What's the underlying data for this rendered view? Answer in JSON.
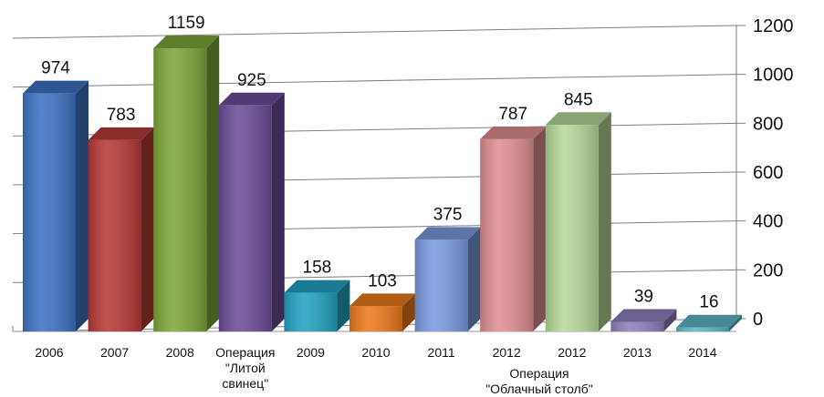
{
  "chart_data": {
    "type": "bar",
    "categories": [
      "2006",
      "2007",
      "2008",
      "Операция \"Литой свинец\"",
      "2009",
      "2010",
      "2011",
      "2012",
      "2012",
      "2013",
      "2014"
    ],
    "category_lines": [
      [
        "2006"
      ],
      [
        "2007"
      ],
      [
        "2008"
      ],
      [
        "Операция",
        "\"Литой",
        "свинец\""
      ],
      [
        "2009"
      ],
      [
        "2010"
      ],
      [
        "2011"
      ],
      [
        "2012"
      ],
      [
        "2012"
      ],
      [
        "2013"
      ],
      [
        "2014"
      ]
    ],
    "values": [
      974,
      783,
      1159,
      925,
      158,
      103,
      375,
      787,
      845,
      39,
      16
    ],
    "value_labels": [
      "974",
      "783",
      "1159",
      "925",
      "158",
      "103",
      "375",
      "787",
      "845",
      "39",
      "16"
    ],
    "colors": [
      "#3f73c4",
      "#b83a36",
      "#7fa83a",
      "#6b4d99",
      "#23a3c2",
      "#ec7b1c",
      "#7b9be0",
      "#e08f92",
      "#b7d99a",
      "#9080bd",
      "#5db5c8"
    ],
    "group_annotation": {
      "lines": [
        "Операция",
        "\"Облачный столб\""
      ]
    },
    "ylim": [
      0,
      1200
    ],
    "yticks": [
      "0",
      "200",
      "400",
      "600",
      "800",
      "1000",
      "1200"
    ],
    "ytick_values": [
      0,
      200,
      400,
      600,
      800,
      1000,
      1200
    ],
    "y_axis_side": "right",
    "grid": true,
    "legend": "none",
    "title": "",
    "xlabel": "",
    "ylabel": ""
  }
}
